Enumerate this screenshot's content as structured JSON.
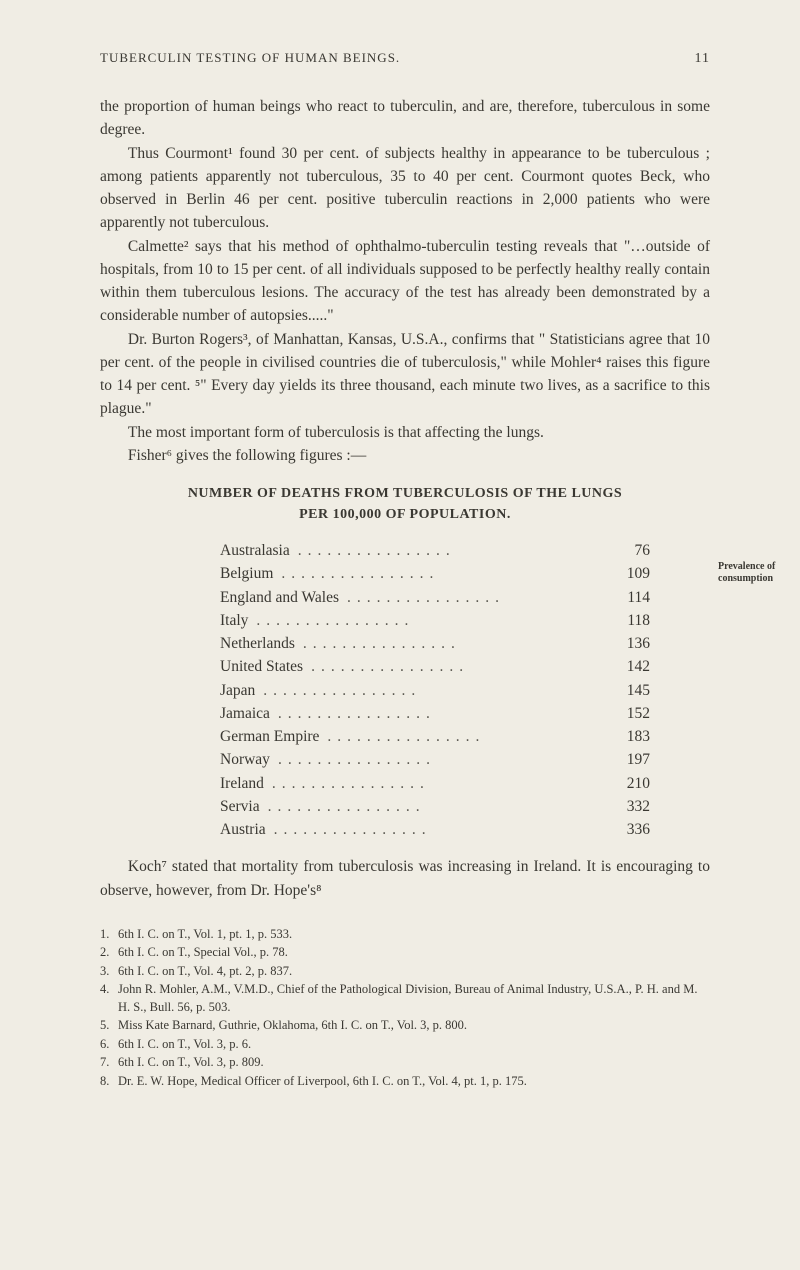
{
  "header": {
    "title": "TUBERCULIN TESTING OF HUMAN BEINGS.",
    "page_number": "11"
  },
  "paragraphs": {
    "p1": "the proportion of human beings who react to tuberculin, and are, therefore, tuberculous in some degree.",
    "p2": "Thus Courmont¹ found 30 per cent. of subjects healthy in appearance to be tuberculous ; among patients apparently not tuberculous, 35 to 40 per cent. Courmont quotes Beck, who observed in Berlin 46 per cent. positive tuberculin reactions in 2,000 patients who were apparently not tuberculous.",
    "p3": "Calmette² says that his method of ophthalmo-tuberculin testing reveals that \"…outside of hospitals, from 10 to 15 per cent. of all individuals supposed to be perfectly healthy really contain within them tuberculous lesions. The accuracy of the test has already been demonstrated by a considerable number of autopsies.....\"",
    "p4": "Dr. Burton Rogers³, of Manhattan, Kansas, U.S.A., confirms that \" Statisticians agree that 10 per cent. of the people in civilised countries die of tuberculosis,\" while Mohler⁴ raises this figure to 14 per cent. ⁵\" Every day yields its three thousand, each minute two lives, as a sacrifice to this plague.\"",
    "p5": "The most important form of tuberculosis is that affecting the lungs.",
    "p6": "Fisher⁶ gives the following figures :—",
    "p7": "Koch⁷ stated that mortality from tuberculosis was increasing in Ireland. It is encouraging to observe, however, from Dr. Hope's⁸"
  },
  "margin_notes": {
    "note1": "Prevalence of consumption"
  },
  "table": {
    "title_line1": "NUMBER OF DEATHS FROM TUBERCULOSIS OF THE LUNGS",
    "title_line2": "PER 100,000 OF POPULATION.",
    "rows": [
      {
        "country": "Australasia",
        "value": "76"
      },
      {
        "country": "Belgium",
        "value": "109"
      },
      {
        "country": "England and Wales",
        "value": "114"
      },
      {
        "country": "Italy",
        "value": "118"
      },
      {
        "country": "Netherlands",
        "value": "136"
      },
      {
        "country": "United States",
        "value": "142"
      },
      {
        "country": "Japan",
        "value": "145"
      },
      {
        "country": "Jamaica",
        "value": "152"
      },
      {
        "country": "German Empire",
        "value": "183"
      },
      {
        "country": "Norway",
        "value": "197"
      },
      {
        "country": "Ireland",
        "value": "210"
      },
      {
        "country": "Servia",
        "value": "332"
      },
      {
        "country": "Austria",
        "value": "336"
      }
    ]
  },
  "references": [
    {
      "num": "1.",
      "text": "6th I. C. on T., Vol. 1, pt. 1, p. 533."
    },
    {
      "num": "2.",
      "text": "6th I. C. on T., Special Vol., p. 78."
    },
    {
      "num": "3.",
      "text": "6th I. C. on T., Vol. 4, pt. 2, p. 837."
    },
    {
      "num": "4.",
      "text": "John R. Mohler, A.M., V.M.D., Chief of the Pathological Division, Bureau of Animal Industry, U.S.A., P. H. and M. H. S., Bull. 56, p. 503."
    },
    {
      "num": "5.",
      "text": "Miss Kate Barnard, Guthrie, Oklahoma, 6th I. C. on T., Vol. 3, p. 800."
    },
    {
      "num": "6.",
      "text": "6th I. C. on T., Vol. 3, p. 6."
    },
    {
      "num": "7.",
      "text": "6th I. C. on T., Vol. 3, p. 809."
    },
    {
      "num": "8.",
      "text": "Dr. E. W. Hope, Medical Officer of Liverpool, 6th I. C. on T., Vol. 4, pt. 1, p. 175."
    }
  ]
}
